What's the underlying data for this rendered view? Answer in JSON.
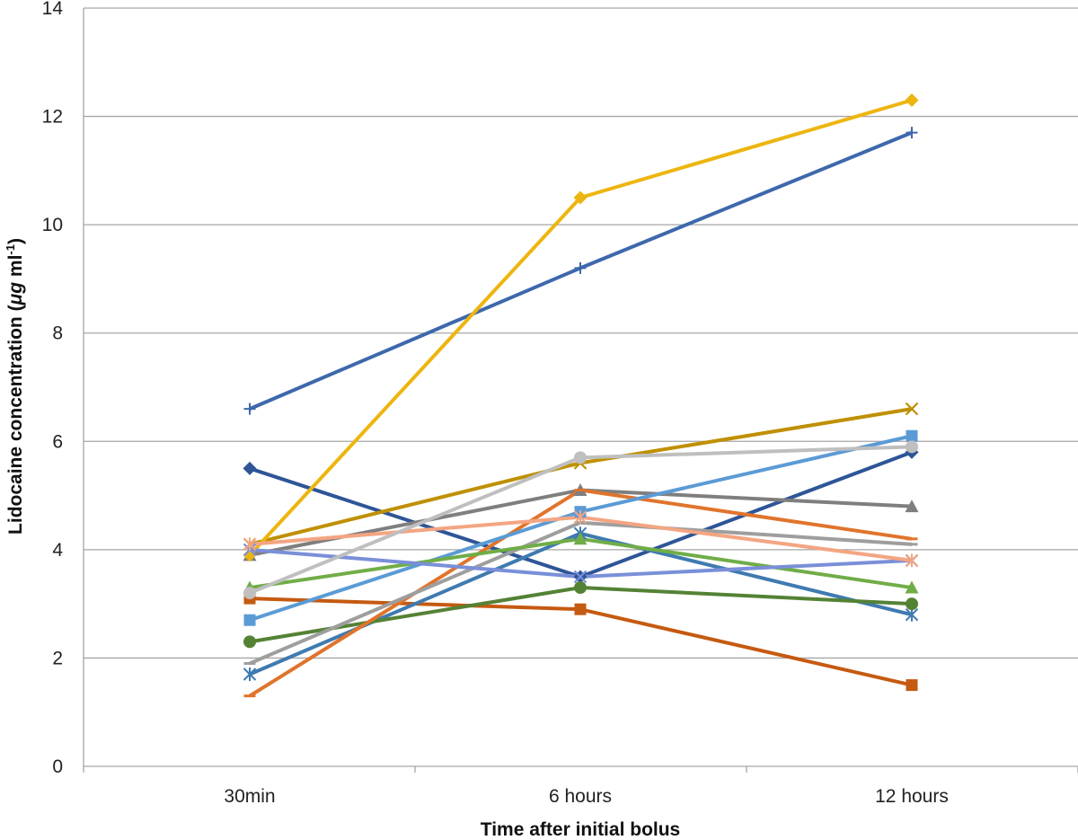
{
  "chart_data": {
    "type": "line",
    "xlabel": "Time after initial bolus",
    "ylabel_main": "Lidocaine concentration (",
    "ylabel_mu": "μg",
    "ylabel_unit": " ml",
    "ylabel_sup": "-1",
    "ylabel_close": ")",
    "categories": [
      "30min",
      "6 hours",
      "12 hours"
    ],
    "ylim": [
      0,
      14
    ],
    "yticks": [
      0,
      2,
      4,
      6,
      8,
      10,
      12,
      14
    ],
    "grid": "horizontal",
    "legend": "none",
    "series": [
      {
        "values": [
          5.5,
          3.5,
          5.8
        ],
        "color": "#2E5597",
        "marker": "diamond"
      },
      {
        "values": [
          3.1,
          2.9,
          1.5
        ],
        "color": "#C55A11",
        "marker": "square"
      },
      {
        "values": [
          3.9,
          5.1,
          4.8
        ],
        "color": "#7F7F7F",
        "marker": "triangle"
      },
      {
        "values": [
          4.1,
          5.6,
          6.6
        ],
        "color": "#BF9000",
        "marker": "x"
      },
      {
        "values": [
          1.7,
          4.3,
          2.8
        ],
        "color": "#3F7AB0",
        "marker": "star"
      },
      {
        "values": [
          2.3,
          3.3,
          3.0
        ],
        "color": "#548235",
        "marker": "circle"
      },
      {
        "values": [
          6.6,
          9.2,
          11.7
        ],
        "color": "#3E68AC",
        "marker": "plus"
      },
      {
        "values": [
          1.3,
          5.1,
          4.2
        ],
        "color": "#E0742C",
        "marker": "dash"
      },
      {
        "values": [
          1.9,
          4.5,
          4.1
        ],
        "color": "#9E9E9E",
        "marker": "dash"
      },
      {
        "values": [
          3.9,
          10.5,
          12.3
        ],
        "color": "#EDB50F",
        "marker": "diamond"
      },
      {
        "values": [
          2.7,
          4.7,
          6.1
        ],
        "color": "#5B9BD5",
        "marker": "square"
      },
      {
        "values": [
          3.3,
          4.2,
          3.3
        ],
        "color": "#70AD47",
        "marker": "triangle"
      },
      {
        "values": [
          4.0,
          3.5,
          3.8
        ],
        "color": "#7A8FD9",
        "marker": "x"
      },
      {
        "values": [
          4.1,
          4.6,
          3.8
        ],
        "color": "#F4A582",
        "marker": "star"
      },
      {
        "values": [
          3.2,
          5.7,
          5.9
        ],
        "color": "#BFBFBF",
        "marker": "circle"
      }
    ]
  }
}
